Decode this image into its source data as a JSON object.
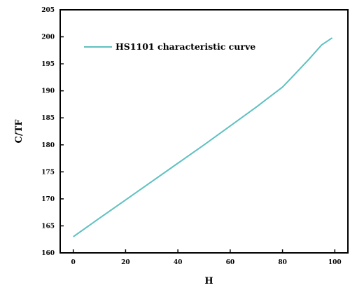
{
  "chart_data": {
    "type": "line",
    "xlabel": "H",
    "ylabel": "C/TF",
    "xlim": [
      -5,
      105
    ],
    "ylim": [
      160,
      205
    ],
    "xticks": [
      0,
      20,
      40,
      60,
      80,
      100
    ],
    "yticks": [
      160,
      165,
      170,
      175,
      180,
      185,
      190,
      195,
      200,
      205
    ],
    "grid": false,
    "legend_position": "top-left",
    "series": [
      {
        "name": "HS1101 characteristic curve",
        "color": "#5fc0c0",
        "x": [
          0,
          10,
          20,
          30,
          40,
          50,
          60,
          70,
          80,
          83,
          90,
          95,
          99
        ],
        "y": [
          163.0,
          166.4,
          169.8,
          173.2,
          176.6,
          180.0,
          183.5,
          187.0,
          190.7,
          192.2,
          195.8,
          198.5,
          199.8
        ]
      }
    ]
  }
}
